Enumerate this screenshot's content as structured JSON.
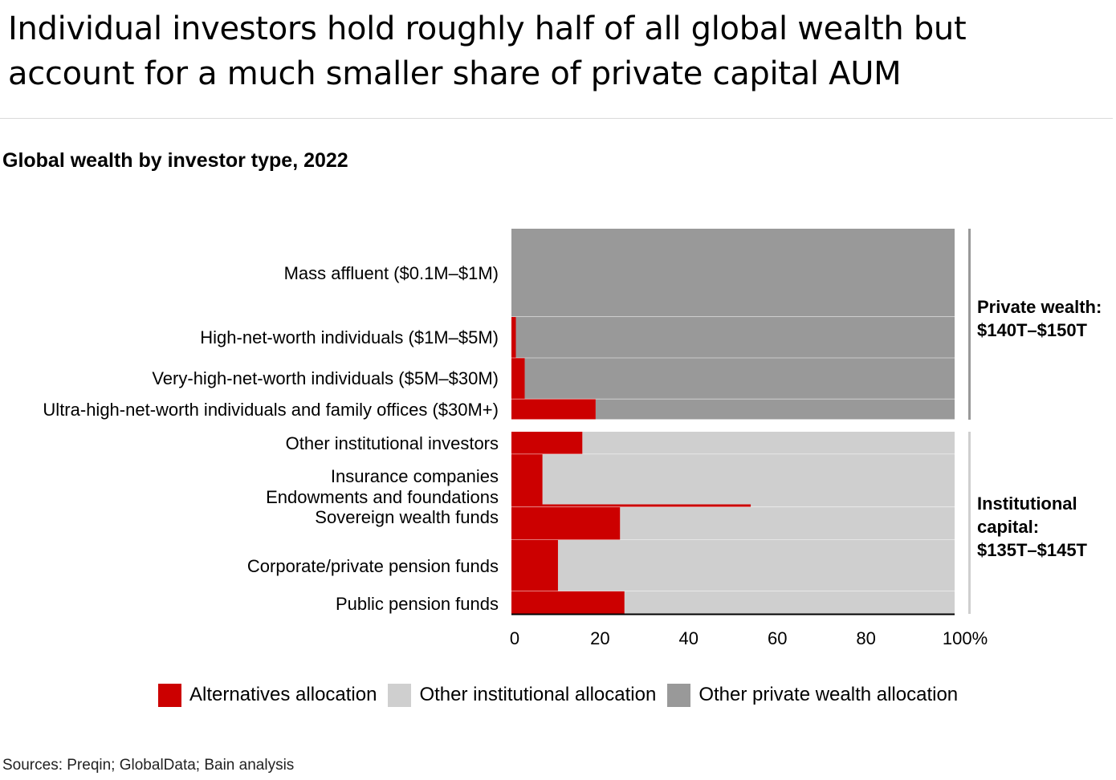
{
  "headline": {
    "line1": "Individual investors hold roughly half of all global wealth but",
    "line2": "account for a much smaller share of private capital AUM"
  },
  "chart_title": "Global wealth by investor type, 2022",
  "source": "Sources: Preqin; GlobalData; Bain analysis",
  "colors": {
    "alternatives": "#cc0000",
    "other_institutional": "#cfcfcf",
    "other_private": "#999999",
    "axis_line": "#000000"
  },
  "legend": {
    "alternatives": "Alternatives allocation",
    "other_institutional": "Other institutional allocation",
    "other_private": "Other private wealth allocation"
  },
  "chart_data": {
    "type": "bar",
    "orientation": "horizontal",
    "stacked": true,
    "xlabel": "",
    "ylabel": "",
    "xlim": [
      0,
      100
    ],
    "x_ticks": [
      "0",
      "20",
      "40",
      "60",
      "80",
      "100%"
    ],
    "grid": false,
    "legend_position": "bottom",
    "categories": [
      "Mass affluent ($0.1M–$1M)",
      "High-net-worth individuals ($1M–$5M)",
      "Very-high-net-worth individuals ($5M–$30M)",
      "Ultra-high-net-worth individuals and family offices ($30M+)",
      "Other institutional investors",
      "Insurance companies",
      "Endowments and foundations",
      "Sovereign wealth funds",
      "Corporate/private pension funds",
      "Public pension funds"
    ],
    "group": [
      "private",
      "private",
      "private",
      "private",
      "institutional",
      "institutional",
      "institutional",
      "institutional",
      "institutional",
      "institutional"
    ],
    "relative_width": [
      21.5,
      10,
      10,
      5,
      5.5,
      12.5,
      0.4,
      8,
      12.5,
      5.5
    ],
    "series": [
      {
        "name": "Alternatives allocation",
        "values": [
          0,
          1,
          3,
          19,
          16,
          7,
          54,
          24.5,
          10.5,
          25.5
        ]
      },
      {
        "name": "Other institutional allocation",
        "values": [
          0,
          0,
          0,
          0,
          84,
          93,
          46,
          75.5,
          89.5,
          74.5
        ]
      },
      {
        "name": "Other private wealth allocation",
        "values": [
          100,
          99,
          97,
          81,
          0,
          0,
          0,
          0,
          0,
          0
        ]
      }
    ],
    "brackets": [
      {
        "lines": [
          "Private wealth:",
          "$140T–$150T"
        ],
        "group": "private"
      },
      {
        "lines": [
          "Institutional",
          "capital:",
          "$135T–$145T"
        ],
        "group": "institutional"
      }
    ]
  }
}
